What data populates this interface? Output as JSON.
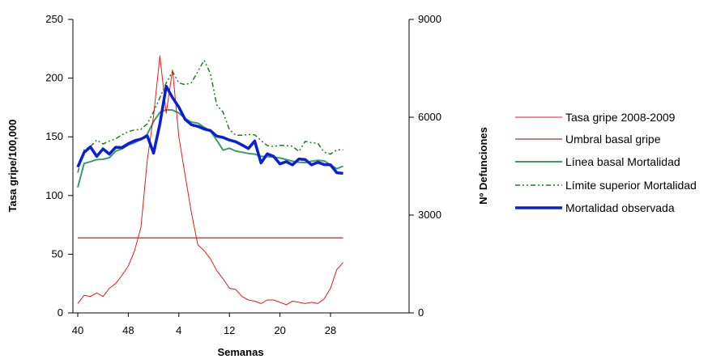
{
  "chart_data": {
    "type": "line",
    "xlabel": "Semanas",
    "ylabel": "Tasa gripe/100,000",
    "y2label": "Nº Defunciones",
    "ylim": [
      0,
      250
    ],
    "y2lim": [
      0,
      9000
    ],
    "x_ticks": [
      "40",
      "48",
      "4",
      "12",
      "20",
      "28"
    ],
    "y_ticks": [
      "0",
      "50",
      "100",
      "150",
      "200",
      "250"
    ],
    "y2_ticks": [
      "0",
      "3000",
      "6000",
      "9000"
    ],
    "grid": false,
    "legend_position": "right",
    "series": [
      {
        "name": "Tasa gripe 2008-2009",
        "axis": "left",
        "color": "#e8191c",
        "values": [
          8,
          15,
          14,
          17,
          14,
          21,
          25,
          32,
          40,
          53,
          73,
          130,
          168,
          219,
          170,
          207,
          150,
          117,
          85,
          58,
          53,
          46,
          36,
          29,
          21,
          20,
          14,
          11,
          10,
          8,
          11,
          11,
          9,
          7,
          10,
          9,
          8,
          9,
          8,
          12,
          21,
          37,
          43
        ]
      },
      {
        "name": "Umbral basal gripe",
        "axis": "left",
        "color": "#8b0000",
        "values": [
          64,
          64,
          64,
          64,
          64,
          64,
          64,
          64,
          64,
          64,
          64,
          64,
          64,
          64,
          64,
          64,
          64,
          64,
          64,
          64,
          64,
          64,
          64,
          64,
          64,
          64,
          64,
          64,
          64,
          64,
          64,
          64,
          64,
          64,
          64,
          64,
          64,
          64,
          64,
          64,
          64,
          64,
          64
        ]
      },
      {
        "name": "Línea basal Mortalidad",
        "axis": "right",
        "color": "#3f9b63",
        "values": [
          3850,
          4580,
          4640,
          4700,
          4710,
          4760,
          4960,
          5030,
          5150,
          5220,
          5330,
          5480,
          5870,
          6150,
          6230,
          6220,
          6130,
          5960,
          5850,
          5820,
          5690,
          5580,
          5290,
          4990,
          5050,
          4960,
          4930,
          4890,
          4870,
          4800,
          4790,
          4780,
          4750,
          4700,
          4650,
          4620,
          4610,
          4650,
          4680,
          4660,
          4540,
          4420,
          4500
        ]
      },
      {
        "name": "Límite superior Mortalidad",
        "axis": "right",
        "color": "#1e7d1e",
        "values": [
          4300,
          5000,
          5100,
          5300,
          5180,
          5270,
          5340,
          5460,
          5560,
          5610,
          5630,
          5800,
          6170,
          6600,
          7050,
          7400,
          7050,
          7000,
          7060,
          7400,
          7750,
          7340,
          6380,
          6150,
          5620,
          5450,
          5450,
          5470,
          5460,
          5290,
          5130,
          5100,
          5140,
          5130,
          5110,
          4950,
          5260,
          5220,
          5200,
          4930,
          4870,
          5000,
          5000
        ]
      },
      {
        "name": "Mortalidad observada",
        "axis": "right",
        "color": "#0b1fd6",
        "values": [
          4470,
          4920,
          5090,
          4800,
          5030,
          4870,
          5080,
          5070,
          5190,
          5280,
          5330,
          5430,
          4900,
          5800,
          6950,
          6600,
          6310,
          5930,
          5770,
          5720,
          5640,
          5590,
          5420,
          5380,
          5300,
          5250,
          5150,
          5040,
          5270,
          4600,
          4880,
          4800,
          4570,
          4640,
          4540,
          4720,
          4700,
          4540,
          4620,
          4550,
          4540,
          4300,
          4280
        ]
      }
    ]
  }
}
